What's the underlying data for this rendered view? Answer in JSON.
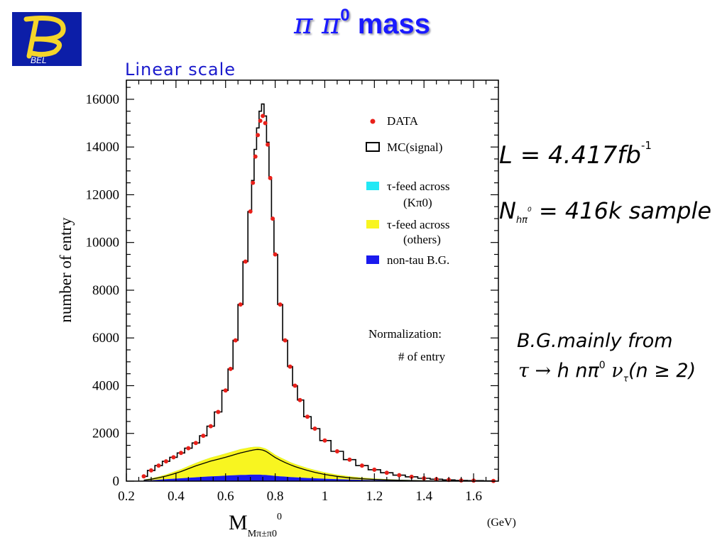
{
  "slide": {
    "title_pi": "π π",
    "title_sup": "0",
    "title_rest": " mass",
    "logo_text": "BEL",
    "scale_label": "Linear  scale"
  },
  "annotations": {
    "lumi_main": "L = 4.417fb",
    "lumi_sup": "-1",
    "nsample_main": "N",
    "nsample_sub": "hπ",
    "nsample_sup": "0",
    "nsample_rest": " = 416k sample",
    "bg_line1": "B.G.mainly from",
    "bg_tau": "τ → ",
    "bg_h": "h nπ",
    "bg_sup": "0",
    "bg_nu": " ν",
    "bg_nu_sub": "τ",
    "bg_cond": "(n ≥ 2)"
  },
  "chart_data": {
    "type": "histogram",
    "title": "",
    "xlabel_main": "M",
    "xlabel_small": "M",
    "xlabel_sub": "π±π0",
    "xlabel_sup": "0",
    "xunit": "(GeV)",
    "ylabel": "number of entry",
    "xlim": [
      0.2,
      1.7
    ],
    "ylim": [
      0,
      16800
    ],
    "xticks": [
      0.2,
      0.4,
      0.6,
      0.8,
      1.0,
      1.2,
      1.4,
      1.6
    ],
    "xtick_labels": [
      "0.2",
      "0.4",
      "0.6",
      "0.8",
      "1",
      "1.2",
      "1.4",
      "1.6"
    ],
    "yticks": [
      0,
      2000,
      4000,
      6000,
      8000,
      10000,
      12000,
      14000,
      16000
    ],
    "ytick_labels": [
      "0",
      "2000",
      "4000",
      "6000",
      "8000",
      "10000",
      "12000",
      "14000",
      "16000"
    ],
    "legend": [
      {
        "key": "data",
        "label": "DATA",
        "color": "#e8201a",
        "marker": "dot"
      },
      {
        "key": "mc",
        "label": "MC(signal)",
        "color": "#000000",
        "marker": "box"
      },
      {
        "key": "kpi",
        "label": "τ-feed across",
        "label2": "(Kπ0)",
        "color": "#22e8f5",
        "marker": "fill"
      },
      {
        "key": "others",
        "label": "τ-feed across",
        "label2": "(others)",
        "color": "#f8f520",
        "marker": "fill"
      },
      {
        "key": "nontau",
        "label": "non-tau B.G.",
        "color": "#1a1aee",
        "marker": "fill"
      }
    ],
    "legend_position": "top-right",
    "note_line1": "Normalization:",
    "note_line2": "# of entry",
    "colors": {
      "data": "#e8201a",
      "mc": "#000000",
      "kpi": "#22e8f5",
      "others": "#f8f520",
      "nontau": "#1a1aee"
    },
    "x": [
      0.27,
      0.3,
      0.33,
      0.36,
      0.39,
      0.42,
      0.45,
      0.48,
      0.51,
      0.54,
      0.57,
      0.6,
      0.62,
      0.64,
      0.66,
      0.68,
      0.7,
      0.71,
      0.72,
      0.73,
      0.74,
      0.75,
      0.76,
      0.77,
      0.78,
      0.79,
      0.8,
      0.82,
      0.84,
      0.86,
      0.88,
      0.9,
      0.93,
      0.96,
      1.0,
      1.05,
      1.1,
      1.15,
      1.2,
      1.25,
      1.3,
      1.35,
      1.4,
      1.45,
      1.5,
      1.55,
      1.6,
      1.68
    ],
    "series": [
      {
        "name": "DATA",
        "values": [
          200,
          450,
          650,
          830,
          1000,
          1180,
          1380,
          1600,
          1900,
          2300,
          2900,
          3800,
          4700,
          5900,
          7400,
          9200,
          11300,
          12500,
          13600,
          14500,
          15100,
          15300,
          15000,
          14100,
          12700,
          11000,
          9500,
          7400,
          5900,
          4800,
          4000,
          3400,
          2700,
          2200,
          1700,
          1250,
          900,
          650,
          480,
          350,
          250,
          180,
          120,
          80,
          50,
          30,
          20,
          10
        ]
      },
      {
        "name": "MC(signal)",
        "values": [
          200,
          450,
          650,
          830,
          1000,
          1180,
          1380,
          1600,
          1900,
          2300,
          2900,
          3800,
          4700,
          5900,
          7400,
          9200,
          11300,
          12600,
          13900,
          14800,
          15500,
          15800,
          15300,
          14200,
          12700,
          11000,
          9500,
          7400,
          5900,
          4800,
          4000,
          3400,
          2700,
          2200,
          1700,
          1250,
          900,
          650,
          480,
          350,
          250,
          180,
          120,
          80,
          50,
          30,
          20,
          10
        ]
      },
      {
        "name": "τ-feed across (Kπ0)",
        "values": [
          40,
          80,
          140,
          210,
          300,
          400,
          520,
          640,
          740,
          840,
          920,
          1000,
          1060,
          1120,
          1180,
          1230,
          1280,
          1300,
          1320,
          1330,
          1320,
          1300,
          1260,
          1200,
          1130,
          1060,
          990,
          880,
          780,
          690,
          610,
          540,
          450,
          370,
          280,
          200,
          140,
          100,
          70,
          50,
          35,
          25,
          15,
          10,
          5,
          3,
          2,
          0
        ]
      },
      {
        "name": "τ-feed across (others)",
        "values": [
          40,
          80,
          130,
          200,
          290,
          380,
          490,
          600,
          700,
          790,
          860,
          930,
          980,
          1030,
          1080,
          1120,
          1150,
          1160,
          1170,
          1170,
          1160,
          1140,
          1110,
          1070,
          1010,
          950,
          890,
          800,
          710,
          630,
          560,
          500,
          420,
          350,
          270,
          190,
          135,
          95,
          65,
          45,
          30,
          20,
          12,
          8,
          4,
          2,
          1,
          0
        ]
      },
      {
        "name": "non-tau B.G.",
        "values": [
          20,
          40,
          60,
          80,
          100,
          120,
          140,
          160,
          180,
          200,
          210,
          230,
          240,
          250,
          260,
          260,
          270,
          270,
          270,
          270,
          270,
          260,
          260,
          250,
          240,
          230,
          220,
          200,
          190,
          170,
          160,
          150,
          130,
          120,
          100,
          80,
          65,
          55,
          45,
          35,
          30,
          25,
          20,
          15,
          10,
          8,
          5,
          3
        ]
      }
    ]
  }
}
